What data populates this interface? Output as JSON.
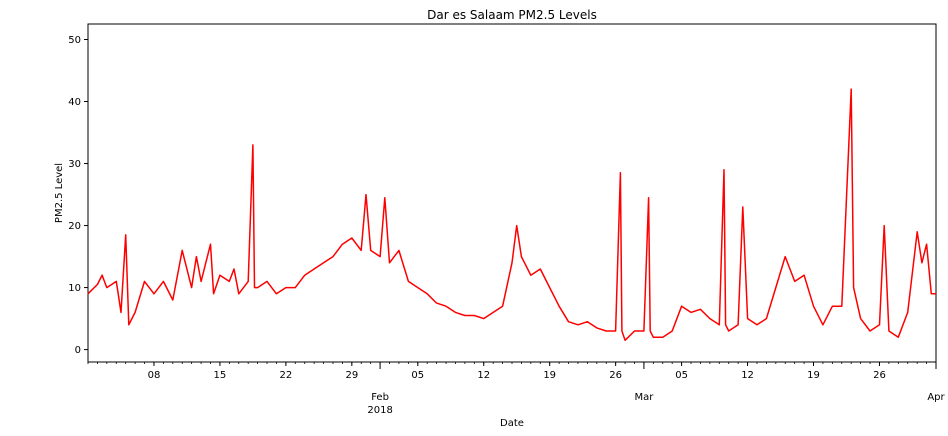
{
  "chart_data": {
    "type": "line",
    "title": "Dar es Salaam PM2.5 Levels",
    "xlabel": "Date",
    "ylabel": "PM2.5 Level",
    "xlim": [
      "2018-01-01",
      "2018-04-01"
    ],
    "ylim": [
      -2,
      52.5
    ],
    "yticks": [
      0,
      10,
      20,
      30,
      40,
      50
    ],
    "xticks_minor": [
      {
        "date": "2018-01-08",
        "label": "08"
      },
      {
        "date": "2018-01-15",
        "label": "15"
      },
      {
        "date": "2018-01-22",
        "label": "22"
      },
      {
        "date": "2018-01-29",
        "label": "29"
      },
      {
        "date": "2018-02-05",
        "label": "05"
      },
      {
        "date": "2018-02-12",
        "label": "12"
      },
      {
        "date": "2018-02-19",
        "label": "19"
      },
      {
        "date": "2018-02-26",
        "label": "26"
      },
      {
        "date": "2018-03-05",
        "label": "05"
      },
      {
        "date": "2018-03-12",
        "label": "12"
      },
      {
        "date": "2018-03-19",
        "label": "19"
      },
      {
        "date": "2018-03-26",
        "label": "26"
      }
    ],
    "xticks_major": [
      {
        "date": "2018-02-01",
        "label": "Feb",
        "sublabel": "2018"
      },
      {
        "date": "2018-03-01",
        "label": "Mar",
        "sublabel": ""
      },
      {
        "date": "2018-04-01",
        "label": "Apr",
        "sublabel": ""
      }
    ],
    "grid": false,
    "series": [
      {
        "color": "#ff0000",
        "points": [
          [
            "2018-01-01",
            9
          ],
          [
            "2018-01-02",
            10.5
          ],
          [
            "2018-01-02T12",
            12
          ],
          [
            "2018-01-03",
            10
          ],
          [
            "2018-01-04",
            11
          ],
          [
            "2018-01-04T12",
            6
          ],
          [
            "2018-01-05",
            18.5
          ],
          [
            "2018-01-05T08",
            4
          ],
          [
            "2018-01-06",
            6
          ],
          [
            "2018-01-07",
            11
          ],
          [
            "2018-01-08",
            9
          ],
          [
            "2018-01-09",
            11
          ],
          [
            "2018-01-10",
            8
          ],
          [
            "2018-01-11",
            16
          ],
          [
            "2018-01-12",
            10
          ],
          [
            "2018-01-12T12",
            15
          ],
          [
            "2018-01-13",
            11
          ],
          [
            "2018-01-14",
            17
          ],
          [
            "2018-01-14T08",
            9
          ],
          [
            "2018-01-15",
            12
          ],
          [
            "2018-01-16",
            11
          ],
          [
            "2018-01-16T12",
            13
          ],
          [
            "2018-01-17",
            9
          ],
          [
            "2018-01-18",
            11
          ],
          [
            "2018-01-18T12",
            33
          ],
          [
            "2018-01-18T16",
            10
          ],
          [
            "2018-01-19",
            10
          ],
          [
            "2018-01-20",
            11
          ],
          [
            "2018-01-21",
            9
          ],
          [
            "2018-01-22",
            10
          ],
          [
            "2018-01-23",
            10
          ],
          [
            "2018-01-24",
            12
          ],
          [
            "2018-01-25",
            13
          ],
          [
            "2018-01-26",
            14
          ],
          [
            "2018-01-27",
            15
          ],
          [
            "2018-01-28",
            17
          ],
          [
            "2018-01-29",
            18
          ],
          [
            "2018-01-30",
            16
          ],
          [
            "2018-01-30T12",
            25
          ],
          [
            "2018-01-31",
            16
          ],
          [
            "2018-02-01",
            15
          ],
          [
            "2018-02-01T12",
            24.5
          ],
          [
            "2018-02-02",
            14
          ],
          [
            "2018-02-03",
            16
          ],
          [
            "2018-02-04",
            11
          ],
          [
            "2018-02-05",
            10
          ],
          [
            "2018-02-06",
            9
          ],
          [
            "2018-02-07",
            7.5
          ],
          [
            "2018-02-08",
            7
          ],
          [
            "2018-02-09",
            6
          ],
          [
            "2018-02-10",
            5.5
          ],
          [
            "2018-02-11",
            5.5
          ],
          [
            "2018-02-12",
            5
          ],
          [
            "2018-02-13",
            6
          ],
          [
            "2018-02-14",
            7
          ],
          [
            "2018-02-15",
            14
          ],
          [
            "2018-02-15T12",
            20
          ],
          [
            "2018-02-16",
            15
          ],
          [
            "2018-02-17",
            12
          ],
          [
            "2018-02-18",
            13
          ],
          [
            "2018-02-19",
            10
          ],
          [
            "2018-02-20",
            7
          ],
          [
            "2018-02-21",
            4.5
          ],
          [
            "2018-02-22",
            4
          ],
          [
            "2018-02-23",
            4.5
          ],
          [
            "2018-02-24",
            3.5
          ],
          [
            "2018-02-25",
            3
          ],
          [
            "2018-02-26",
            3
          ],
          [
            "2018-02-26T12",
            28.5
          ],
          [
            "2018-02-26T16",
            3
          ],
          [
            "2018-02-27",
            1.5
          ],
          [
            "2018-02-28",
            3
          ],
          [
            "2018-03-01",
            3
          ],
          [
            "2018-03-01T12",
            24.5
          ],
          [
            "2018-03-01T16",
            3
          ],
          [
            "2018-03-02",
            2
          ],
          [
            "2018-03-03",
            2
          ],
          [
            "2018-03-04",
            3
          ],
          [
            "2018-03-05",
            7
          ],
          [
            "2018-03-06",
            6
          ],
          [
            "2018-03-07",
            6.5
          ],
          [
            "2018-03-08",
            5
          ],
          [
            "2018-03-09",
            4
          ],
          [
            "2018-03-09T12",
            29
          ],
          [
            "2018-03-09T16",
            4
          ],
          [
            "2018-03-10",
            3
          ],
          [
            "2018-03-11",
            4
          ],
          [
            "2018-03-11T12",
            23
          ],
          [
            "2018-03-12",
            5
          ],
          [
            "2018-03-13",
            4
          ],
          [
            "2018-03-14",
            5
          ],
          [
            "2018-03-15",
            10
          ],
          [
            "2018-03-16",
            15
          ],
          [
            "2018-03-17",
            11
          ],
          [
            "2018-03-18",
            12
          ],
          [
            "2018-03-19",
            7
          ],
          [
            "2018-03-20",
            4
          ],
          [
            "2018-03-21",
            7
          ],
          [
            "2018-03-22",
            7
          ],
          [
            "2018-03-23",
            42
          ],
          [
            "2018-03-23T06",
            10
          ],
          [
            "2018-03-24",
            5
          ],
          [
            "2018-03-25",
            3
          ],
          [
            "2018-03-26",
            4
          ],
          [
            "2018-03-26T12",
            20
          ],
          [
            "2018-03-27",
            3
          ],
          [
            "2018-03-28",
            2
          ],
          [
            "2018-03-29",
            6
          ],
          [
            "2018-03-30",
            19
          ],
          [
            "2018-03-30T12",
            14
          ],
          [
            "2018-03-31",
            17
          ],
          [
            "2018-03-31T12",
            9
          ],
          [
            "2018-04-01",
            9
          ]
        ]
      }
    ]
  }
}
